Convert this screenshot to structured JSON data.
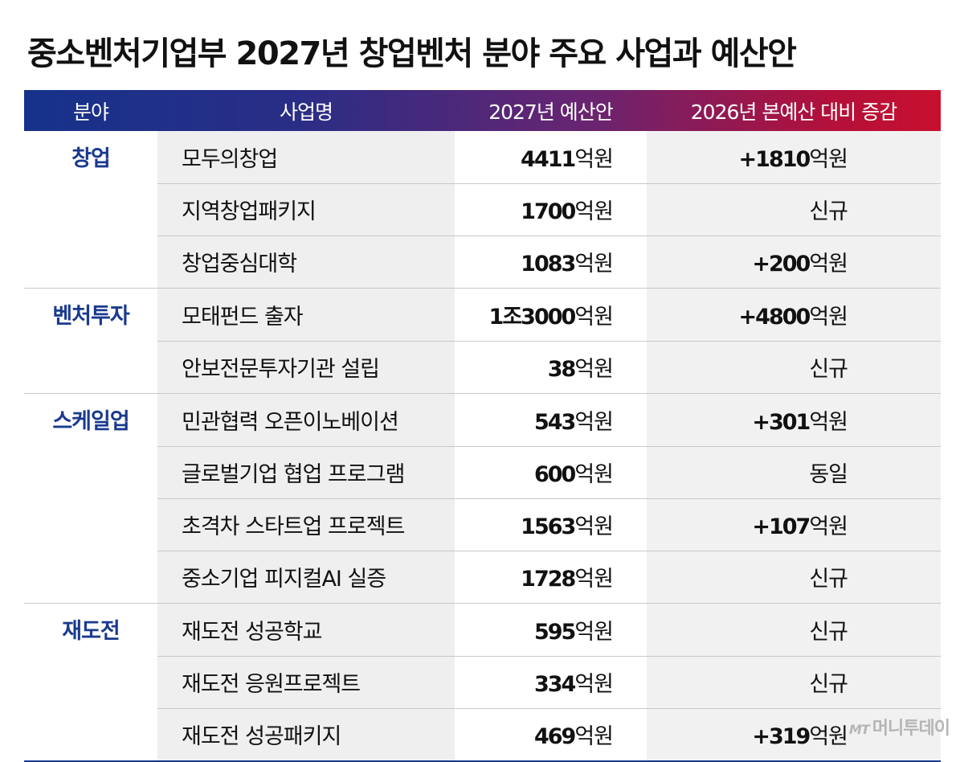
{
  "title": "중소벤처기업부 2027년 창업벤처 분야 주요 사업과 예산안",
  "headers": [
    "분야",
    "사업명",
    "2027년 예산안",
    "2026년 본예산 대비 증감"
  ],
  "rows": [
    {
      "category": "창업",
      "name": "모두의창업",
      "budget_num": "4411",
      "budget_unit": "억원",
      "diff_num": "+1810",
      "diff_unit": "억원"
    },
    {
      "category": "",
      "name": "지역창업패키지",
      "budget_num": "1700",
      "budget_unit": "억원",
      "diff_num": "",
      "diff_unit": "신규"
    },
    {
      "category": "",
      "name": "창업중심대학",
      "budget_num": "1083",
      "budget_unit": "억원",
      "diff_num": "+200",
      "diff_unit": "억원"
    },
    {
      "category": "벤처투자",
      "name": "모태펀드 출자",
      "budget_num": "1조3000",
      "budget_unit": "억원",
      "diff_num": "+4800",
      "diff_unit": "억원"
    },
    {
      "category": "",
      "name": "안보전문투자기관 설립",
      "budget_num": "38",
      "budget_unit": "억원",
      "diff_num": "",
      "diff_unit": "신규"
    },
    {
      "category": "스케일업",
      "name": "민관협력 오픈이노베이션",
      "budget_num": "543",
      "budget_unit": "억원",
      "diff_num": "+301",
      "diff_unit": "억원"
    },
    {
      "category": "",
      "name": "글로벌기업 협업 프로그램",
      "budget_num": "600",
      "budget_unit": "억원",
      "diff_num": "",
      "diff_unit": "동일"
    },
    {
      "category": "",
      "name": "초격차 스타트업 프로젝트",
      "budget_num": "1563",
      "budget_unit": "억원",
      "diff_num": "+107",
      "diff_unit": "억원"
    },
    {
      "category": "",
      "name": "중소기업 피지컬AI 실증",
      "budget_num": "1728",
      "budget_unit": "억원",
      "diff_num": "",
      "diff_unit": "신규"
    },
    {
      "category": "재도전",
      "name": "재도전 성공학교",
      "budget_num": "595",
      "budget_unit": "억원",
      "diff_num": "",
      "diff_unit": "신규"
    },
    {
      "category": "",
      "name": "재도전 응원프로젝트",
      "budget_num": "334",
      "budget_unit": "억원",
      "diff_num": "",
      "diff_unit": "신규"
    },
    {
      "category": "",
      "name": "재도전 성공패키지",
      "budget_num": "469",
      "budget_unit": "억원",
      "diff_num": "+319",
      "diff_unit": "억원"
    }
  ],
  "logo": {
    "mark": "MT",
    "text": "머니투데이"
  },
  "colors": {
    "category_text": "#1a3a8f",
    "header_start": "#16328a",
    "header_end": "#c8102e"
  }
}
